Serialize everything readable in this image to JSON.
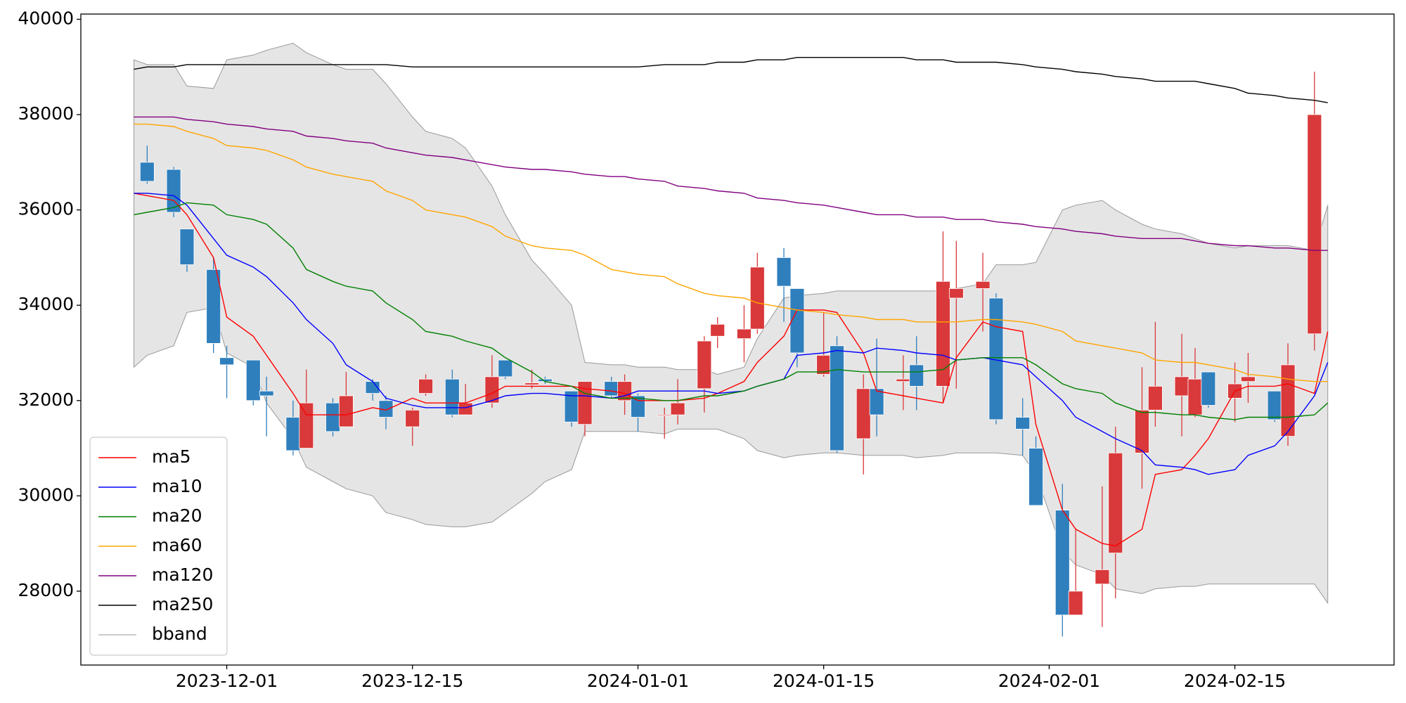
{
  "chart_data": {
    "type": "candlestick",
    "x": [
      "2023-11-24",
      "2023-11-25",
      "2023-11-27",
      "2023-11-28",
      "2023-11-30",
      "2023-12-01",
      "2023-12-03",
      "2023-12-04",
      "2023-12-06",
      "2023-12-07",
      "2023-12-09",
      "2023-12-10",
      "2023-12-12",
      "2023-12-13",
      "2023-12-15",
      "2023-12-16",
      "2023-12-18",
      "2023-12-19",
      "2023-12-21",
      "2023-12-22",
      "2023-12-24",
      "2023-12-25",
      "2023-12-27",
      "2023-12-28",
      "2023-12-30",
      "2023-12-31",
      "2024-01-01",
      "2024-01-03",
      "2024-01-04",
      "2024-01-06",
      "2024-01-07",
      "2024-01-09",
      "2024-01-10",
      "2024-01-12",
      "2024-01-13",
      "2024-01-15",
      "2024-01-16",
      "2024-01-18",
      "2024-01-19",
      "2024-01-21",
      "2024-01-22",
      "2024-01-24",
      "2024-01-25",
      "2024-01-27",
      "2024-01-28",
      "2024-01-30",
      "2024-01-31",
      "2024-02-02",
      "2024-02-03",
      "2024-02-05",
      "2024-02-06",
      "2024-02-08",
      "2024-02-09",
      "2024-02-11",
      "2024-02-12",
      "2024-02-13",
      "2024-02-15",
      "2024-02-16",
      "2024-02-18",
      "2024-02-19",
      "2024-02-21",
      "2024-02-22"
    ],
    "open": [
      null,
      37000,
      36850,
      35600,
      34750,
      32900,
      32850,
      32200,
      31650,
      31000,
      31950,
      31450,
      32400,
      32000,
      31450,
      32150,
      32450,
      31700,
      31950,
      32850,
      32330,
      32450,
      32200,
      31500,
      32400,
      32000,
      32100,
      31680,
      31700,
      32250,
      33350,
      33300,
      33500,
      35000,
      34350,
      32550,
      33150,
      31200,
      32250,
      32400,
      32750,
      32300,
      34150,
      34350,
      34150,
      31650,
      31000,
      29700,
      27500,
      28150,
      28800,
      30900,
      31800,
      32100,
      31700,
      32600,
      32050,
      32400,
      32200,
      31250,
      33400,
      null
    ],
    "high": [
      null,
      37350,
      36900,
      35600,
      35000,
      33150,
      32850,
      32500,
      32000,
      32650,
      32050,
      32600,
      32450,
      32100,
      31850,
      32550,
      32650,
      32350,
      32950,
      32850,
      32650,
      32500,
      32200,
      32400,
      32500,
      32550,
      32150,
      31850,
      32450,
      33350,
      33750,
      34000,
      35100,
      35200,
      34350,
      33850,
      33350,
      32550,
      33300,
      32950,
      33350,
      35550,
      35350,
      35100,
      34250,
      32050,
      31250,
      30250,
      29300,
      30200,
      31450,
      32700,
      33650,
      33400,
      33100,
      32600,
      32800,
      33000,
      32200,
      33200,
      38900,
      null
    ],
    "low": [
      null,
      36550,
      35850,
      34700,
      33000,
      32050,
      31900,
      31250,
      30850,
      31000,
      31250,
      31450,
      32000,
      31400,
      31050,
      32100,
      31650,
      31700,
      31850,
      32450,
      32250,
      32350,
      31450,
      31250,
      32050,
      31700,
      31350,
      31200,
      31500,
      31750,
      33100,
      32800,
      33400,
      33650,
      32700,
      32500,
      30900,
      30450,
      31250,
      31800,
      31800,
      31950,
      32250,
      33450,
      31500,
      30850,
      29800,
      27050,
      27500,
      27250,
      27850,
      30150,
      31450,
      31250,
      31650,
      31850,
      31550,
      31950,
      31550,
      31050,
      33050,
      null
    ],
    "close": [
      null,
      36600,
      35950,
      34850,
      33200,
      32750,
      32000,
      32100,
      30950,
      31950,
      31350,
      32100,
      32150,
      31650,
      31800,
      32450,
      31700,
      31950,
      32500,
      32500,
      32370,
      32400,
      31550,
      32400,
      32100,
      32400,
      31650,
      31700,
      31950,
      33250,
      33600,
      33500,
      34800,
      34400,
      33000,
      32950,
      30950,
      32250,
      31700,
      32450,
      32300,
      34500,
      34350,
      34500,
      31600,
      31400,
      29800,
      27500,
      28000,
      28450,
      30900,
      31800,
      32300,
      32500,
      32450,
      31900,
      32350,
      32500,
      31600,
      32750,
      38000,
      null
    ],
    "up_color": "#d9393a",
    "down_color": "#2f7fbd",
    "series": [
      {
        "name": "ma5",
        "color": "#ff0000",
        "values": [
          36350,
          36300,
          36200,
          35900,
          35000,
          33750,
          33350,
          32950,
          32150,
          31700,
          31700,
          31700,
          31850,
          31800,
          32050,
          31950,
          31950,
          31950,
          32150,
          32300,
          32300,
          32300,
          32300,
          32250,
          32200,
          32150,
          32000,
          32000,
          32000,
          32050,
          32150,
          32400,
          32800,
          33350,
          33900,
          33900,
          33850,
          33000,
          32200,
          32100,
          32050,
          31950,
          32900,
          33650,
          33550,
          33450,
          31500,
          29700,
          29300,
          29000,
          28950,
          29300,
          30450,
          30550,
          30850,
          31200,
          32200,
          32300,
          32300,
          32350,
          32150,
          33450
        ]
      },
      {
        "name": "ma10",
        "color": "#0000ff",
        "values": [
          36350,
          36350,
          36300,
          36100,
          35400,
          35050,
          34800,
          34600,
          34050,
          33700,
          33200,
          32750,
          32400,
          32050,
          31900,
          31850,
          31850,
          31850,
          32000,
          32100,
          32150,
          32150,
          32100,
          32100,
          32050,
          32100,
          32200,
          32200,
          32200,
          32200,
          32150,
          32200,
          32300,
          32450,
          32950,
          33000,
          33050,
          33000,
          33100,
          33050,
          33000,
          32950,
          32850,
          32900,
          32850,
          32750,
          32500,
          32000,
          31650,
          31350,
          31200,
          30950,
          30650,
          30600,
          30550,
          30450,
          30550,
          30850,
          31050,
          31350,
          32100,
          32800
        ]
      },
      {
        "name": "ma20",
        "color": "#008000",
        "values": [
          35900,
          35950,
          36050,
          36150,
          36100,
          35900,
          35800,
          35700,
          35200,
          34750,
          34500,
          34400,
          34300,
          34050,
          33700,
          33450,
          33350,
          33250,
          33100,
          32900,
          32600,
          32400,
          32300,
          32150,
          32050,
          32050,
          32050,
          32000,
          32000,
          32100,
          32100,
          32200,
          32300,
          32450,
          32600,
          32600,
          32650,
          32600,
          32600,
          32600,
          32600,
          32650,
          32850,
          32900,
          32900,
          32900,
          32750,
          32350,
          32250,
          32150,
          31950,
          31750,
          31750,
          31700,
          31700,
          31650,
          31600,
          31650,
          31650,
          31650,
          31700,
          31950
        ]
      },
      {
        "name": "ma60",
        "color": "#ffa500",
        "values": [
          37800,
          37800,
          37750,
          37650,
          37500,
          37350,
          37300,
          37250,
          37050,
          36900,
          36750,
          36700,
          36600,
          36400,
          36200,
          36000,
          35900,
          35850,
          35650,
          35450,
          35250,
          35200,
          35150,
          35050,
          34750,
          34700,
          34650,
          34600,
          34450,
          34250,
          34200,
          34150,
          34050,
          33950,
          33900,
          33850,
          33800,
          33750,
          33700,
          33700,
          33650,
          33650,
          33650,
          33700,
          33700,
          33650,
          33600,
          33450,
          33250,
          33150,
          33100,
          33000,
          32850,
          32800,
          32800,
          32750,
          32650,
          32550,
          32500,
          32450,
          32400,
          32400
        ]
      },
      {
        "name": "ma120",
        "color": "#800080",
        "values": [
          37950,
          37950,
          37950,
          37900,
          37850,
          37800,
          37750,
          37700,
          37650,
          37550,
          37500,
          37450,
          37400,
          37300,
          37200,
          37150,
          37100,
          37050,
          36950,
          36900,
          36850,
          36850,
          36800,
          36750,
          36700,
          36700,
          36650,
          36600,
          36500,
          36450,
          36400,
          36350,
          36250,
          36200,
          36150,
          36100,
          36050,
          35950,
          35900,
          35900,
          35850,
          35850,
          35800,
          35800,
          35750,
          35700,
          35650,
          35600,
          35550,
          35500,
          35450,
          35400,
          35400,
          35400,
          35350,
          35300,
          35250,
          35250,
          35200,
          35200,
          35150,
          35150
        ]
      },
      {
        "name": "ma250",
        "color": "#000000",
        "values": [
          38950,
          39000,
          39000,
          39050,
          39050,
          39050,
          39050,
          39050,
          39050,
          39050,
          39050,
          39050,
          39050,
          39050,
          39000,
          39000,
          39000,
          39000,
          39000,
          39000,
          39000,
          39000,
          39000,
          39000,
          39000,
          39000,
          39000,
          39050,
          39050,
          39050,
          39100,
          39100,
          39150,
          39150,
          39200,
          39200,
          39200,
          39200,
          39200,
          39200,
          39150,
          39150,
          39100,
          39100,
          39100,
          39050,
          39000,
          38950,
          38900,
          38850,
          38800,
          38750,
          38700,
          38700,
          38700,
          38650,
          38550,
          38450,
          38400,
          38350,
          38300,
          38250
        ]
      }
    ],
    "band": {
      "name": "bband",
      "color": "#e5e5e5",
      "edge_color": "#999999",
      "upper": [
        39150,
        39050,
        39050,
        38600,
        38550,
        39150,
        39250,
        39350,
        39500,
        39300,
        39050,
        38950,
        38950,
        38650,
        37950,
        37650,
        37500,
        37300,
        36500,
        35900,
        34950,
        34650,
        34000,
        32800,
        32750,
        32750,
        32700,
        32700,
        32650,
        32650,
        32550,
        32700,
        33300,
        34150,
        34200,
        34250,
        34300,
        34300,
        34300,
        34300,
        34300,
        34300,
        34350,
        34450,
        34850,
        34850,
        34900,
        36000,
        36100,
        36200,
        36000,
        35700,
        35600,
        35500,
        35400,
        35300,
        35200,
        35250,
        35250,
        35250,
        35150,
        36100
      ],
      "lower": [
        32700,
        32950,
        33150,
        33850,
        33950,
        33000,
        32700,
        31950,
        31200,
        30600,
        30300,
        30150,
        30000,
        29650,
        29500,
        29400,
        29350,
        29350,
        29450,
        29650,
        30050,
        30300,
        30550,
        31350,
        31350,
        31350,
        31350,
        31300,
        31400,
        31400,
        31400,
        31200,
        30950,
        30800,
        30850,
        30900,
        30900,
        30850,
        30850,
        30850,
        30800,
        30850,
        30900,
        30900,
        30900,
        30850,
        30450,
        28850,
        28550,
        28350,
        28050,
        27950,
        28050,
        28100,
        28100,
        28150,
        28150,
        28150,
        28150,
        28150,
        28150,
        27750
      ]
    },
    "xlim": [
      "2023-11-20",
      "2024-02-27"
    ],
    "xticks": [
      "2023-12-01",
      "2023-12-15",
      "2024-01-01",
      "2024-01-15",
      "2024-02-01",
      "2024-02-15"
    ],
    "ylim": [
      26450,
      40110
    ],
    "yticks": [
      28000,
      30000,
      32000,
      34000,
      36000,
      38000,
      40000
    ],
    "legend": "lower left"
  }
}
